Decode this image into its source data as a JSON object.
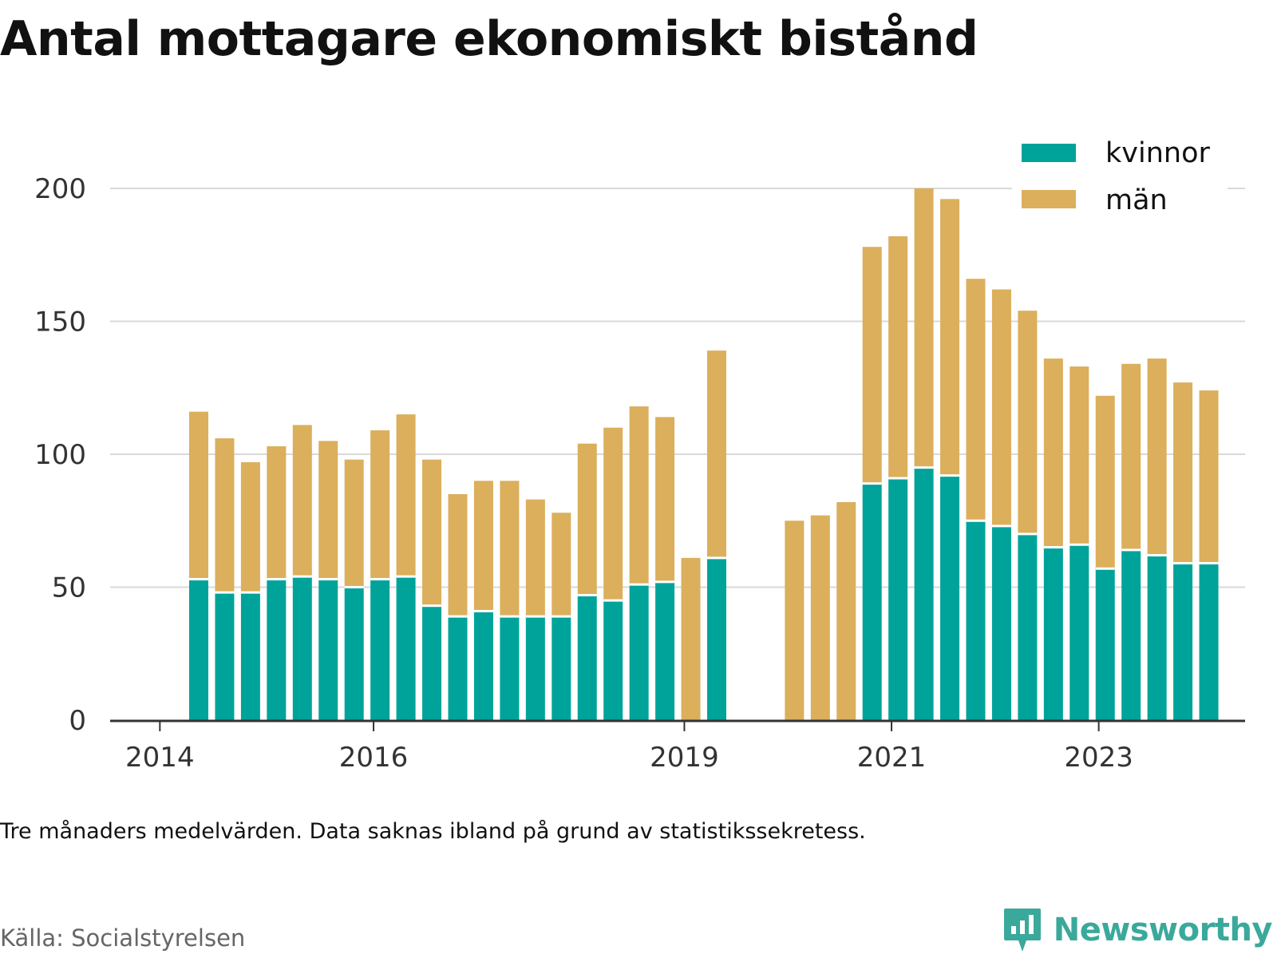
{
  "title": "Antal mottagare ekonomiskt bistånd",
  "note": "Tre månaders medelvärden. Data saknas ibland på grund av statistikssekretess.",
  "source": "Källa: Socialstyrelsen",
  "brand": "Newsworthy",
  "colors": {
    "kvinnor": "#00a39a",
    "man": "#dbaf5c",
    "grid": "#d9d9d9",
    "axis": "#333333"
  },
  "chart_data": {
    "type": "bar",
    "stacked": true,
    "title": "Antal mottagare ekonomiskt bistånd",
    "ylim": [
      0,
      200
    ],
    "yticks": [
      0,
      50,
      100,
      150,
      200
    ],
    "x_tick_labels": [
      "2014",
      "2016",
      "2019",
      "2021",
      "2023"
    ],
    "legend_position": "top-right",
    "grid": true,
    "categories": [
      "2014 Q2",
      "2014 Q3",
      "2014 Q4",
      "2015 Q1",
      "2015 Q2",
      "2015 Q3",
      "2015 Q4",
      "2016 Q1",
      "2016 Q2",
      "2016 Q3",
      "2016 Q4",
      "2017 Q1",
      "2017 Q2",
      "2017 Q3",
      "2017 Q4",
      "2018 Q1",
      "2018 Q2",
      "2018 Q3",
      "2018 Q4",
      "2019 Q1",
      "2019 Q2",
      "2019 Q3",
      "2019 Q4",
      "2020 Q1",
      "2020 Q2",
      "2020 Q3",
      "2020 Q4",
      "2021 Q1",
      "2021 Q2",
      "2021 Q3",
      "2021 Q4",
      "2022 Q1",
      "2022 Q2",
      "2022 Q3",
      "2022 Q4",
      "2023 Q1",
      "2023 Q2",
      "2023 Q3",
      "2023 Q4",
      "2024 Q1"
    ],
    "series": [
      {
        "name": "kvinnor",
        "values": [
          53,
          48,
          48,
          53,
          54,
          53,
          50,
          53,
          54,
          43,
          39,
          41,
          39,
          39,
          39,
          47,
          45,
          51,
          52,
          null,
          61,
          null,
          null,
          null,
          null,
          null,
          89,
          91,
          95,
          92,
          75,
          73,
          70,
          65,
          66,
          57,
          64,
          62,
          59,
          59
        ]
      },
      {
        "name": "män",
        "values": [
          63,
          58,
          49,
          50,
          57,
          52,
          48,
          56,
          61,
          55,
          46,
          49,
          51,
          44,
          39,
          57,
          65,
          67,
          62,
          61,
          78,
          null,
          null,
          75,
          77,
          82,
          89,
          91,
          105,
          104,
          91,
          89,
          84,
          71,
          67,
          65,
          70,
          74,
          68,
          65
        ]
      }
    ]
  }
}
